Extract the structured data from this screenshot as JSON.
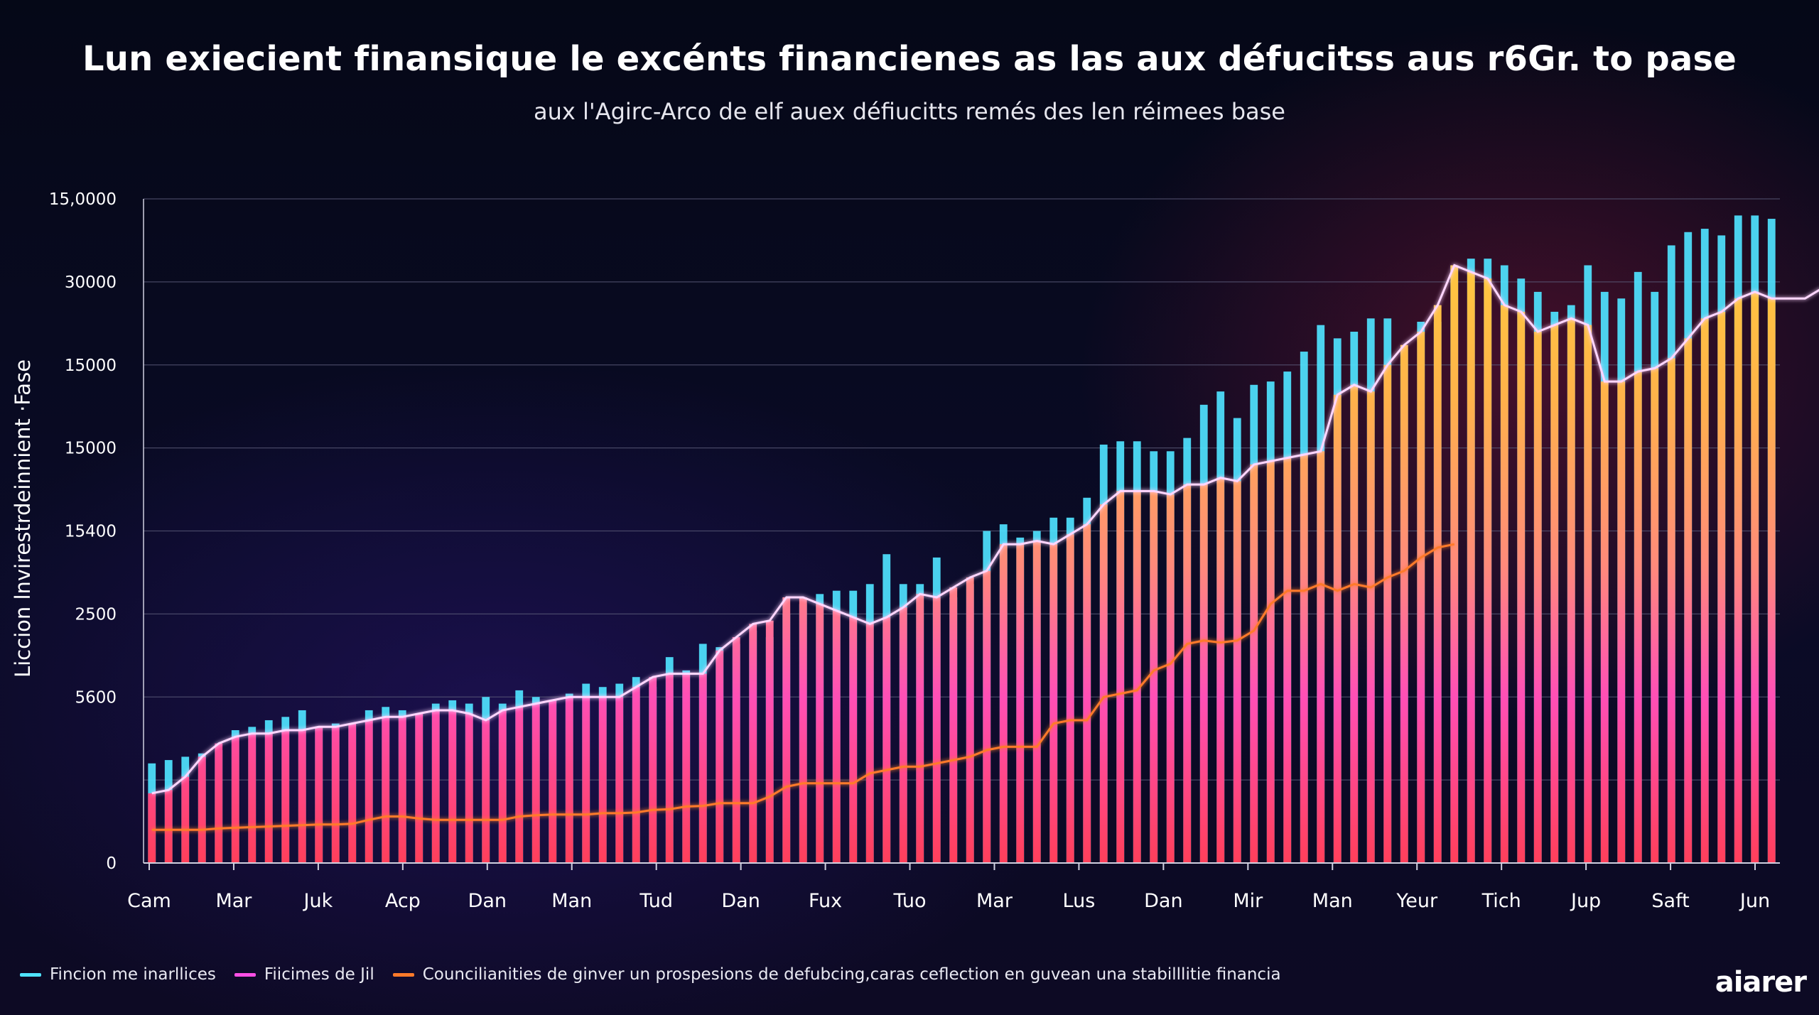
{
  "title": "Lun exiecient finansique le excénts financienes as las aux défucitss aus r6Gr. to pase",
  "subtitle": "aux l'Agirc-Arco de elf auex défiucitts remés des len réimees base",
  "brand": "aiarer",
  "colors": {
    "background": "#070a1e",
    "cyan": "#4fe3ff",
    "magenta": "#ff4fe6",
    "orange": "#ff7a2a",
    "gold": "#ffc233",
    "grid": "#5a5a78"
  },
  "chart_data": {
    "type": "bar",
    "ylabel": "Liccion lnvirestrdeinnient ·Fase",
    "xlabel": "",
    "grid": true,
    "legend_position": "bottom-left",
    "y_ticks": [
      "15,0000",
      "30000",
      "15000",
      "15000",
      "15400",
      "2500",
      "5600",
      "",
      "0"
    ],
    "x_ticks": [
      "Cam",
      "Mar",
      "Juk",
      "Acp",
      "Dan",
      "Man",
      "Tud",
      "Dan",
      "Fux",
      "Tuo",
      "Mar",
      "Lus",
      "Dan",
      "Mir",
      "Man",
      "Yeur",
      "Tich",
      "Jup",
      "Saft",
      "Jun"
    ],
    "ylim": [
      0,
      100
    ],
    "series": [
      {
        "name": "Fincion me inarllices",
        "values": [
          15,
          15.5,
          16,
          16.5,
          17,
          20,
          20.5,
          21.5,
          22,
          23,
          20.5,
          21,
          20.5,
          23,
          23.5,
          23,
          22.5,
          24,
          24.5,
          24,
          25,
          24,
          26,
          25,
          24.5,
          25.5,
          27,
          26.5,
          27,
          28,
          26.5,
          31,
          29,
          33,
          32.5,
          33,
          35,
          34,
          37.5,
          39,
          40.5,
          41,
          41,
          42,
          46.5,
          42,
          42,
          46,
          40,
          42,
          50,
          51,
          49,
          50,
          52,
          52,
          55,
          63,
          63.5,
          63.5,
          62,
          62,
          64,
          69,
          71,
          67,
          72,
          72.5,
          74,
          77,
          81,
          79,
          80,
          82,
          82,
          77.5,
          81.5,
          81.5,
          90,
          91,
          91,
          90,
          88,
          86,
          83,
          84,
          90,
          86,
          85,
          89,
          86,
          93,
          95,
          95.5,
          94.5,
          97.5,
          97.5,
          97
        ]
      },
      {
        "name": "Fiicimes de Jil",
        "values": [
          10.5,
          11,
          13,
          16,
          18,
          19,
          19.5,
          19.5,
          20,
          20,
          20.5,
          20.5,
          21,
          21.5,
          22,
          22,
          22.5,
          23,
          23,
          22.5,
          21.5,
          23,
          23.5,
          24,
          24.5,
          25,
          25,
          25,
          25,
          26.5,
          28,
          28.5,
          28.5,
          28.5,
          32,
          34,
          36,
          36.5,
          40,
          40,
          39,
          38,
          37,
          36,
          37,
          38.5,
          40.5,
          40,
          41.5,
          43,
          44,
          48,
          48,
          48.5,
          48,
          49.5,
          51,
          54,
          56,
          56,
          56,
          55.5,
          57,
          57,
          58,
          57.5,
          60,
          60.5,
          61,
          61.5,
          62,
          70.5,
          72,
          71,
          75,
          78,
          80,
          84,
          90,
          89,
          88,
          84,
          83,
          80,
          81,
          82,
          81,
          72.5,
          72.5,
          74,
          74.5,
          76,
          79,
          82,
          83,
          85,
          86,
          85,
          85,
          85,
          86.5
        ]
      },
      {
        "name": "Councilianities de ginver un prospesions de defubcing,caras ceflection en guvean una stabilllitie financia",
        "values": [
          5,
          5,
          5,
          5,
          5.2,
          5.3,
          5.4,
          5.5,
          5.6,
          5.7,
          5.8,
          5.8,
          5.9,
          6.5,
          7,
          7,
          6.7,
          6.5,
          6.5,
          6.5,
          6.5,
          6.5,
          7,
          7.2,
          7.3,
          7.3,
          7.3,
          7.5,
          7.5,
          7.6,
          8,
          8.1,
          8.5,
          8.6,
          9,
          9,
          9,
          10,
          11.5,
          12,
          12,
          12,
          12,
          13.5,
          14,
          14.5,
          14.5,
          15,
          15.5,
          16,
          17,
          17.5,
          17.5,
          17.5,
          21,
          21.5,
          21.5,
          25,
          25.5,
          26,
          29,
          30,
          33,
          33.5,
          33.2,
          33.5,
          35,
          39,
          41,
          41,
          42,
          41,
          42,
          41.5,
          43,
          44,
          46,
          47.5,
          48
        ]
      }
    ]
  }
}
